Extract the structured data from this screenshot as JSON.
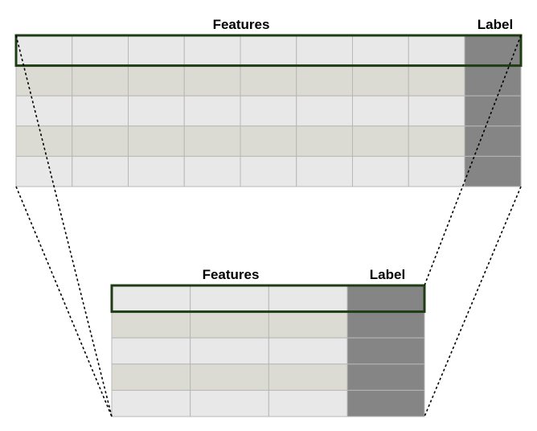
{
  "top_table": {
    "features_label": "Features",
    "label_label": "Label",
    "feature_columns": 8,
    "rows": 5
  },
  "bottom_table": {
    "features_label": "Features",
    "label_label": "Label",
    "feature_columns": 3,
    "rows": 5
  },
  "colors": {
    "cell_light": "#e8e8e8",
    "cell_beige": "#dcdbd3",
    "label_column": "#858585",
    "grid_line": "#b7b7b7",
    "highlight_border": "#1f3d14",
    "connector": "#000000"
  }
}
